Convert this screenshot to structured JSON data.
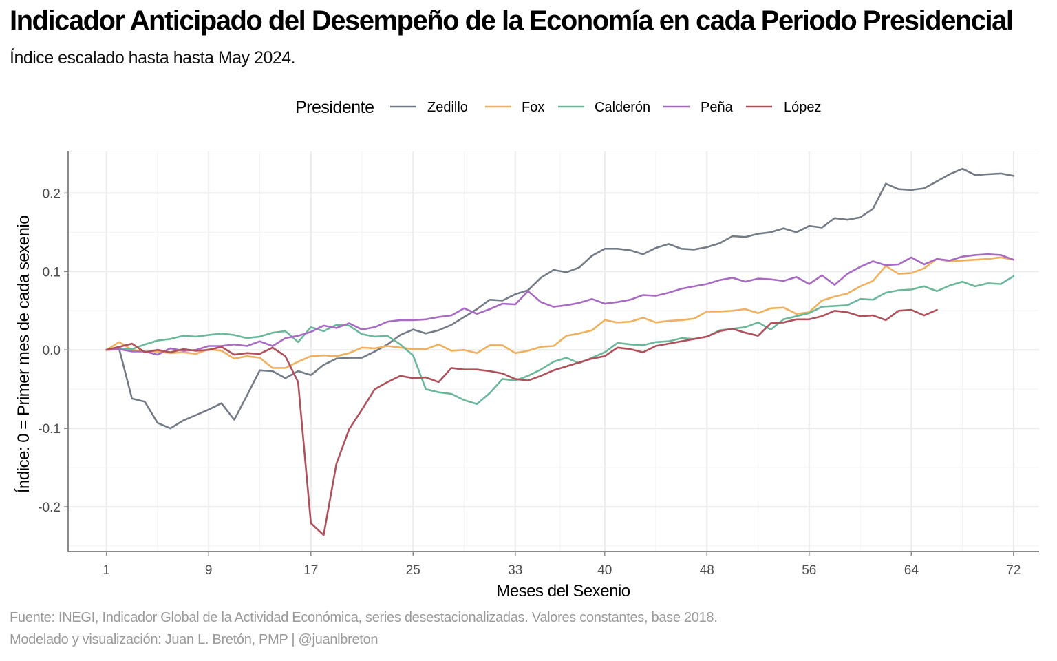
{
  "title": "Indicador Anticipado del Desempeño de la Economía en cada Periodo Presidencial",
  "subtitle": "Índice escalado hasta hasta May 2024.",
  "caption": {
    "line1": "Fuente: INEGI, Indicador Global de la Actividad Económica, series desestacionalizadas. Valores constantes, base 2018.",
    "line2": "Modelado y visualización: Juan L. Bretón, PMP | @juanlbreton"
  },
  "colors": {
    "Zedillo": "#737b87",
    "Fox": "#f0b05e",
    "Calderón": "#6bb79a",
    "Peña": "#a86bc4",
    "López": "#b0505a",
    "grid_major": "#ebebeb",
    "grid_minor": "#f4f4f4",
    "axis_line": "#8a8a8a"
  },
  "chart_data": {
    "type": "line",
    "title": "Indicador Anticipado del Desempeño de la Economía en cada Periodo Presidencial",
    "subtitle": "Índice escalado hasta hasta May 2024.",
    "xlabel": "Meses del Sexenio",
    "ylabel": "Índice: 0 = Primer mes de cada sexenio",
    "legend_title": "Presidente",
    "legend_position": "top",
    "xlim": [
      -2,
      74
    ],
    "ylim": [
      -0.257,
      0.253
    ],
    "x_ticks": [
      1,
      9,
      17,
      25,
      33,
      40,
      48,
      56,
      64,
      72
    ],
    "x_tick_labels": [
      "1",
      "9",
      "17",
      "25",
      "33",
      "40",
      "48",
      "56",
      "64",
      "72"
    ],
    "y_ticks": [
      -0.2,
      -0.1,
      0.0,
      0.1,
      0.2
    ],
    "y_tick_labels": [
      "-0.2",
      "-0.1",
      "0.0",
      "0.1",
      "0.2"
    ],
    "grid": true,
    "series": [
      {
        "name": "Zedillo",
        "start": 1,
        "values": [
          0.0,
          0.001,
          -0.062,
          -0.066,
          -0.093,
          -0.1,
          -0.09,
          -0.083,
          -0.076,
          -0.068,
          -0.089,
          -0.058,
          -0.026,
          -0.027,
          -0.036,
          -0.027,
          -0.032,
          -0.019,
          -0.011,
          -0.01,
          -0.01,
          -0.002,
          0.007,
          0.019,
          0.026,
          0.021,
          0.025,
          0.032,
          0.042,
          0.052,
          0.064,
          0.063,
          0.071,
          0.076,
          0.092,
          0.102,
          0.099,
          0.105,
          0.12,
          0.129,
          0.129,
          0.127,
          0.122,
          0.13,
          0.135,
          0.129,
          0.128,
          0.131,
          0.136,
          0.145,
          0.144,
          0.148,
          0.15,
          0.155,
          0.15,
          0.158,
          0.156,
          0.168,
          0.166,
          0.169,
          0.18,
          0.212,
          0.205,
          0.204,
          0.206,
          0.215,
          0.224,
          0.231,
          0.223,
          0.224,
          0.225,
          0.222
        ]
      },
      {
        "name": "Fox",
        "start": 1,
        "values": [
          0.0,
          0.01,
          0.0,
          -0.002,
          -0.002,
          -0.004,
          -0.003,
          -0.005,
          0.001,
          -0.001,
          -0.011,
          -0.008,
          -0.01,
          -0.023,
          -0.023,
          -0.015,
          -0.008,
          -0.007,
          -0.008,
          -0.004,
          0.003,
          0.002,
          0.005,
          0.003,
          0.001,
          0.001,
          0.007,
          -0.001,
          0.0,
          -0.004,
          0.006,
          0.006,
          -0.004,
          -0.001,
          0.004,
          0.005,
          0.018,
          0.021,
          0.025,
          0.038,
          0.035,
          0.036,
          0.041,
          0.035,
          0.037,
          0.038,
          0.04,
          0.049,
          0.049,
          0.05,
          0.052,
          0.047,
          0.053,
          0.054,
          0.046,
          0.048,
          0.063,
          0.068,
          0.072,
          0.081,
          0.088,
          0.107,
          0.097,
          0.098,
          0.104,
          0.116,
          0.113,
          0.114,
          0.115,
          0.116,
          0.118,
          0.115
        ]
      },
      {
        "name": "Calderón",
        "start": 1,
        "values": [
          0.0,
          0.002,
          0.001,
          0.007,
          0.012,
          0.014,
          0.018,
          0.017,
          0.019,
          0.021,
          0.019,
          0.015,
          0.017,
          0.022,
          0.024,
          0.01,
          0.029,
          0.024,
          0.032,
          0.031,
          0.02,
          0.017,
          0.018,
          0.007,
          -0.007,
          -0.05,
          -0.054,
          -0.056,
          -0.064,
          -0.069,
          -0.055,
          -0.037,
          -0.039,
          -0.033,
          -0.025,
          -0.015,
          -0.01,
          -0.017,
          -0.01,
          -0.003,
          0.009,
          0.007,
          0.006,
          0.01,
          0.011,
          0.015,
          0.014,
          0.017,
          0.025,
          0.027,
          0.029,
          0.035,
          0.026,
          0.039,
          0.043,
          0.047,
          0.055,
          0.056,
          0.057,
          0.065,
          0.064,
          0.073,
          0.076,
          0.077,
          0.081,
          0.075,
          0.082,
          0.087,
          0.081,
          0.085,
          0.084,
          0.094
        ]
      },
      {
        "name": "Peña",
        "start": 1,
        "values": [
          0.0,
          0.001,
          -0.002,
          -0.002,
          -0.006,
          0.002,
          -0.001,
          0.0,
          0.005,
          0.005,
          0.007,
          0.005,
          0.011,
          0.005,
          0.015,
          0.018,
          0.023,
          0.031,
          0.028,
          0.034,
          0.026,
          0.029,
          0.036,
          0.038,
          0.038,
          0.039,
          0.042,
          0.044,
          0.053,
          0.046,
          0.052,
          0.059,
          0.058,
          0.075,
          0.061,
          0.055,
          0.057,
          0.06,
          0.065,
          0.059,
          0.061,
          0.064,
          0.07,
          0.069,
          0.073,
          0.078,
          0.081,
          0.084,
          0.089,
          0.092,
          0.087,
          0.091,
          0.09,
          0.088,
          0.093,
          0.084,
          0.095,
          0.083,
          0.097,
          0.106,
          0.113,
          0.108,
          0.109,
          0.118,
          0.109,
          0.116,
          0.114,
          0.119,
          0.121,
          0.122,
          0.121,
          0.115
        ]
      },
      {
        "name": "López",
        "start": 1,
        "values": [
          0.0,
          0.004,
          0.008,
          -0.003,
          0.0,
          -0.003,
          0.001,
          -0.001,
          0.0,
          0.004,
          -0.006,
          -0.004,
          -0.005,
          0.003,
          -0.008,
          -0.041,
          -0.221,
          -0.236,
          -0.145,
          -0.101,
          -0.076,
          -0.05,
          -0.041,
          -0.033,
          -0.036,
          -0.035,
          -0.041,
          -0.023,
          -0.025,
          -0.025,
          -0.027,
          -0.03,
          -0.037,
          -0.039,
          -0.033,
          -0.026,
          -0.021,
          -0.016,
          -0.011,
          -0.008,
          0.003,
          0.001,
          -0.003,
          0.005,
          0.008,
          0.011,
          0.014,
          0.017,
          0.024,
          0.027,
          0.022,
          0.018,
          0.034,
          0.035,
          0.039,
          0.039,
          0.043,
          0.05,
          0.048,
          0.043,
          0.044,
          0.038,
          0.05,
          0.051,
          0.044,
          0.051
        ]
      }
    ]
  }
}
